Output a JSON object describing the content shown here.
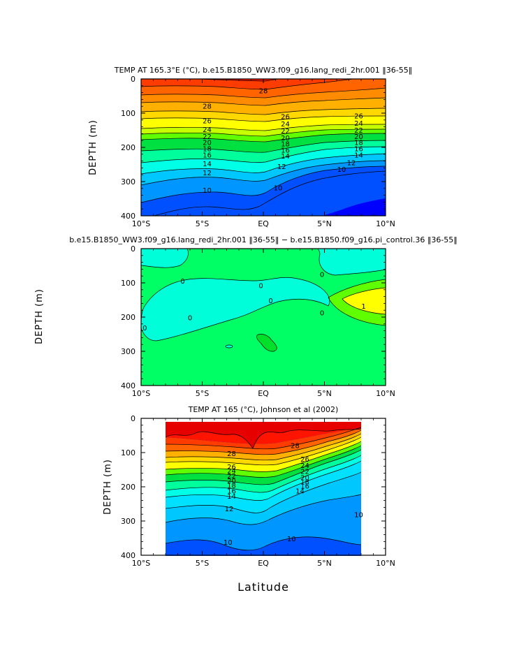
{
  "figure": {
    "xlabel": "Latitude",
    "colors": {
      "t8": "#3800d8",
      "t9": "#0000ff",
      "t10": "#0050ff",
      "t11": "#0096ff",
      "t12": "#00c8ff",
      "t13": "#00e0ff",
      "t14": "#00ffe6",
      "t16": "#00ff9c",
      "t18": "#00e040",
      "t20": "#60ff00",
      "t21": "#c8ff00",
      "t22": "#ffff00",
      "t23": "#ffd800",
      "t24": "#ffb000",
      "t25": "#ff8c00",
      "t26": "#ff6400",
      "t27": "#ff3c00",
      "t28": "#ff1400",
      "t29": "#e60000",
      "dneg": "#00ffd8",
      "dzero": "#00ff64",
      "dpos1": "#00e02a",
      "dpos2": "#60ff00",
      "dpos3": "#ffff00"
    }
  },
  "chart_data": [
    {
      "type": "contour",
      "title": "TEMP AT 165.3°E (°C), b.e15.B1850_WW3.f09_g16.lang_redi_2hr.001 ‖36-55‖",
      "xlabel": "",
      "ylabel": "DEPTH (m)",
      "xlim": [
        -10,
        10
      ],
      "ylim": [
        400,
        0
      ],
      "xticks": [
        -10,
        -5,
        0,
        5,
        10
      ],
      "xticklabels": [
        "10°S",
        "5°S",
        "EQ",
        "5°N",
        "10°N"
      ],
      "yticks": [
        0,
        100,
        200,
        300,
        400
      ],
      "yticklabels": [
        "0",
        "100",
        "200",
        "300",
        "400"
      ],
      "contour_labels": [
        {
          "text": "28",
          "lat": 0.0,
          "depth": 35
        },
        {
          "text": "28",
          "lat": -4.6,
          "depth": 80
        },
        {
          "text": "26",
          "lat": 1.8,
          "depth": 110
        },
        {
          "text": "26",
          "lat": 7.8,
          "depth": 108
        },
        {
          "text": "26",
          "lat": -4.6,
          "depth": 122
        },
        {
          "text": "24",
          "lat": 1.8,
          "depth": 132
        },
        {
          "text": "24",
          "lat": 7.8,
          "depth": 130
        },
        {
          "text": "24",
          "lat": -4.6,
          "depth": 148
        },
        {
          "text": "22",
          "lat": 1.8,
          "depth": 152
        },
        {
          "text": "22",
          "lat": 7.8,
          "depth": 150
        },
        {
          "text": "22",
          "lat": -4.6,
          "depth": 168
        },
        {
          "text": "20",
          "lat": 1.8,
          "depth": 172
        },
        {
          "text": "20",
          "lat": 7.8,
          "depth": 168
        },
        {
          "text": "20",
          "lat": -4.6,
          "depth": 186
        },
        {
          "text": "18",
          "lat": 1.8,
          "depth": 190
        },
        {
          "text": "18",
          "lat": 7.8,
          "depth": 186
        },
        {
          "text": "18",
          "lat": -4.6,
          "depth": 204
        },
        {
          "text": "16",
          "lat": 1.8,
          "depth": 208
        },
        {
          "text": "16",
          "lat": 7.8,
          "depth": 204
        },
        {
          "text": "16",
          "lat": -4.6,
          "depth": 222
        },
        {
          "text": "14",
          "lat": 1.8,
          "depth": 226
        },
        {
          "text": "14",
          "lat": 7.8,
          "depth": 222
        },
        {
          "text": "14",
          "lat": -4.6,
          "depth": 248
        },
        {
          "text": "12",
          "lat": 1.5,
          "depth": 256
        },
        {
          "text": "12",
          "lat": 7.2,
          "depth": 245
        },
        {
          "text": "12",
          "lat": -4.6,
          "depth": 274
        },
        {
          "text": "10",
          "lat": 6.4,
          "depth": 264
        },
        {
          "text": "10",
          "lat": 1.2,
          "depth": 318
        },
        {
          "text": "10",
          "lat": -4.6,
          "depth": 325
        }
      ]
    },
    {
      "type": "contour",
      "title": "b.e15.B1850_WW3.f09_g16.lang_redi_2hr.001 ‖36-55‖ − b.e15.B1850.f09_g16.pi_control.36 ‖36-55‖",
      "xlabel": "",
      "ylabel": "DEPTH (m)",
      "xlim": [
        -10,
        10
      ],
      "ylim": [
        400,
        0
      ],
      "xticks": [
        -10,
        -5,
        0,
        5,
        10
      ],
      "xticklabels": [
        "10°S",
        "5°S",
        "EQ",
        "5°N",
        "10°N"
      ],
      "yticks": [
        0,
        100,
        200,
        300,
        400
      ],
      "yticklabels": [
        "0",
        "100",
        "200",
        "300",
        "400"
      ],
      "contour_labels": [
        {
          "text": "0",
          "lat": -6.6,
          "depth": 95
        },
        {
          "text": "0",
          "lat": -0.2,
          "depth": 108
        },
        {
          "text": "0",
          "lat": 0.6,
          "depth": 152
        },
        {
          "text": "0",
          "lat": -6.0,
          "depth": 202
        },
        {
          "text": "0",
          "lat": -9.7,
          "depth": 232
        },
        {
          "text": "0",
          "lat": 4.8,
          "depth": 75
        },
        {
          "text": "0",
          "lat": 4.8,
          "depth": 188
        },
        {
          "text": "1",
          "lat": 8.2,
          "depth": 168
        }
      ]
    },
    {
      "type": "contour",
      "title": "TEMP AT 165 (°C), Johnson et al (2002)",
      "xlabel": "Latitude",
      "ylabel": "DEPTH (m)",
      "xlim": [
        -10,
        10
      ],
      "ylim": [
        400,
        0
      ],
      "data_extent_lat": [
        -8,
        8
      ],
      "data_extent_depth": [
        10,
        400
      ],
      "xticks": [
        -10,
        -5,
        0,
        5,
        10
      ],
      "xticklabels": [
        "10°S",
        "5°S",
        "EQ",
        "5°N",
        "10°N"
      ],
      "yticks": [
        0,
        100,
        200,
        300,
        400
      ],
      "yticklabels": [
        "0",
        "100",
        "200",
        "300",
        "400"
      ],
      "contour_labels": [
        {
          "text": "28",
          "lat": -2.6,
          "depth": 103
        },
        {
          "text": "28",
          "lat": 2.6,
          "depth": 80
        },
        {
          "text": "26",
          "lat": -2.6,
          "depth": 142
        },
        {
          "text": "26",
          "lat": 3.4,
          "depth": 119
        },
        {
          "text": "24",
          "lat": -2.6,
          "depth": 153
        },
        {
          "text": "24",
          "lat": 3.4,
          "depth": 138
        },
        {
          "text": "22",
          "lat": -2.6,
          "depth": 168
        },
        {
          "text": "22",
          "lat": 3.4,
          "depth": 155
        },
        {
          "text": "20",
          "lat": -2.6,
          "depth": 183
        },
        {
          "text": "20",
          "lat": 3.4,
          "depth": 173
        },
        {
          "text": "18",
          "lat": -2.6,
          "depth": 196
        },
        {
          "text": "18",
          "lat": 3.4,
          "depth": 186
        },
        {
          "text": "16",
          "lat": -2.6,
          "depth": 212
        },
        {
          "text": "16",
          "lat": 3.4,
          "depth": 198
        },
        {
          "text": "14",
          "lat": -2.6,
          "depth": 228
        },
        {
          "text": "14",
          "lat": 3.0,
          "depth": 212
        },
        {
          "text": "12",
          "lat": -2.8,
          "depth": 264
        },
        {
          "text": "10",
          "lat": 7.8,
          "depth": 282
        },
        {
          "text": "10",
          "lat": 2.3,
          "depth": 352
        },
        {
          "text": "10",
          "lat": -2.9,
          "depth": 362
        }
      ]
    }
  ]
}
